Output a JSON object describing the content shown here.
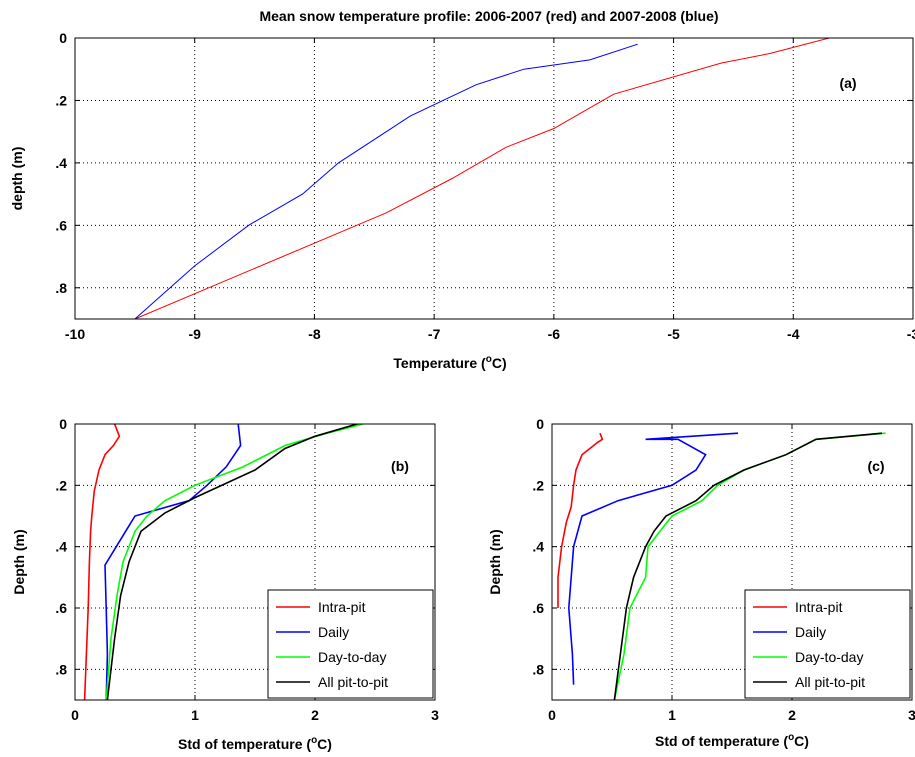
{
  "chart_data": [
    {
      "type": "line",
      "panel_label": "(a)",
      "title": "Mean snow temperature profile: 2006-2007 (red) and 2007-2008 (blue)",
      "xlabel": "Temperature (",
      "xlabel_sup": "o",
      "xlabel_end": "C)",
      "ylabel": "depth (m)",
      "xlim": [
        -10,
        -3
      ],
      "ylim": [
        0,
        0.9
      ],
      "y_reversed": true,
      "grid": true,
      "xticks": [
        -10,
        -9,
        -8,
        -7,
        -6,
        -5,
        -4,
        -3
      ],
      "yticks": [
        0,
        0.2,
        0.4,
        0.6,
        0.8
      ],
      "series": [
        {
          "color": "#ff0000",
          "x": [
            -3.7,
            -4.2,
            -4.6,
            -5.5,
            -6.0,
            -6.4,
            -6.85,
            -7.4,
            -9.5
          ],
          "y": [
            0.0,
            0.05,
            0.08,
            0.18,
            0.29,
            0.35,
            0.45,
            0.56,
            0.9
          ]
        },
        {
          "color": "#0000ff",
          "x": [
            -5.3,
            -5.7,
            -6.25,
            -6.65,
            -7.2,
            -7.4,
            -7.8,
            -8.1,
            -8.55,
            -9.0,
            -9.5
          ],
          "y": [
            0.02,
            0.07,
            0.1,
            0.15,
            0.25,
            0.3,
            0.4,
            0.5,
            0.6,
            0.73,
            0.9
          ]
        }
      ]
    },
    {
      "type": "line",
      "panel_label": "(b)",
      "xlabel": "Std of temperature (",
      "xlabel_sup": "o",
      "xlabel_end": "C)",
      "ylabel": "Depth (m)",
      "xlim": [
        0,
        3
      ],
      "ylim": [
        0,
        0.9
      ],
      "y_reversed": true,
      "grid": true,
      "xticks": [
        0,
        1,
        2,
        3
      ],
      "yticks": [
        0,
        0.2,
        0.4,
        0.6,
        0.8
      ],
      "legend_position": "bottom-right",
      "series": [
        {
          "name": "Intra-pit",
          "color": "#ff0000",
          "x": [
            0.33,
            0.37,
            0.32,
            0.25,
            0.2,
            0.16,
            0.14,
            0.13,
            0.12,
            0.11,
            0.1,
            0.09,
            0.08
          ],
          "y": [
            0.0,
            0.04,
            0.07,
            0.1,
            0.15,
            0.22,
            0.3,
            0.35,
            0.45,
            0.6,
            0.7,
            0.8,
            0.9
          ]
        },
        {
          "name": "Daily",
          "color": "#0000ff",
          "x": [
            1.36,
            1.38,
            1.26,
            1.1,
            0.95,
            0.5,
            0.25,
            0.26,
            0.27,
            0.26
          ],
          "y": [
            0.0,
            0.07,
            0.14,
            0.2,
            0.25,
            0.3,
            0.46,
            0.6,
            0.75,
            0.9
          ]
        },
        {
          "name": "Day-to-day",
          "color": "#00ff00",
          "x": [
            2.4,
            2.1,
            1.75,
            1.4,
            1.0,
            0.75,
            0.6,
            0.5,
            0.4,
            0.35,
            0.3,
            0.28,
            0.26
          ],
          "y": [
            0.0,
            0.03,
            0.07,
            0.14,
            0.2,
            0.25,
            0.3,
            0.35,
            0.45,
            0.56,
            0.7,
            0.8,
            0.9
          ]
        },
        {
          "name": "All pit-to-pit",
          "color": "#000000",
          "x": [
            2.35,
            2.0,
            1.75,
            1.5,
            1.0,
            0.75,
            0.55,
            0.45,
            0.38,
            0.33,
            0.3,
            0.27
          ],
          "y": [
            0.0,
            0.04,
            0.08,
            0.15,
            0.24,
            0.29,
            0.35,
            0.45,
            0.56,
            0.7,
            0.8,
            0.9
          ]
        }
      ]
    },
    {
      "type": "line",
      "panel_label": "(c)",
      "xlabel": "Std of temperature (",
      "xlabel_sup": "o",
      "xlabel_end": "C)",
      "ylabel": "Depth (m)",
      "xlim": [
        0,
        3
      ],
      "ylim": [
        0,
        0.9
      ],
      "y_reversed": true,
      "grid": true,
      "xticks": [
        0,
        1,
        2,
        3
      ],
      "yticks": [
        0,
        0.2,
        0.4,
        0.6,
        0.8
      ],
      "legend_position": "bottom-right",
      "series": [
        {
          "name": "Intra-pit",
          "color": "#ff0000",
          "x": [
            0.4,
            0.42,
            0.38,
            0.25,
            0.2,
            0.18,
            0.16,
            0.12,
            0.08,
            0.05,
            0.05
          ],
          "y": [
            0.03,
            0.05,
            0.06,
            0.1,
            0.15,
            0.2,
            0.27,
            0.32,
            0.4,
            0.5,
            0.6
          ]
        },
        {
          "name": "Daily",
          "color": "#0000ff",
          "x": [
            1.55,
            0.78,
            1.05,
            1.28,
            1.2,
            1.0,
            0.55,
            0.25,
            0.18,
            0.14,
            0.17,
            0.18
          ],
          "y": [
            0.03,
            0.05,
            0.05,
            0.1,
            0.15,
            0.2,
            0.25,
            0.3,
            0.4,
            0.6,
            0.75,
            0.85
          ]
        },
        {
          "name": "Day-to-day",
          "color": "#00ff00",
          "x": [
            2.78,
            2.2,
            1.95,
            1.6,
            1.38,
            1.25,
            1.0,
            0.9,
            0.8,
            0.78,
            0.65,
            0.6,
            0.52
          ],
          "y": [
            0.03,
            0.05,
            0.1,
            0.15,
            0.2,
            0.25,
            0.3,
            0.35,
            0.4,
            0.5,
            0.6,
            0.75,
            0.9
          ]
        },
        {
          "name": "All pit-to-pit",
          "color": "#000000",
          "x": [
            2.75,
            2.2,
            1.95,
            1.6,
            1.35,
            1.2,
            0.95,
            0.85,
            0.78,
            0.68,
            0.62,
            0.57,
            0.52
          ],
          "y": [
            0.03,
            0.05,
            0.1,
            0.15,
            0.2,
            0.25,
            0.3,
            0.35,
            0.4,
            0.5,
            0.6,
            0.75,
            0.9
          ]
        }
      ]
    }
  ]
}
